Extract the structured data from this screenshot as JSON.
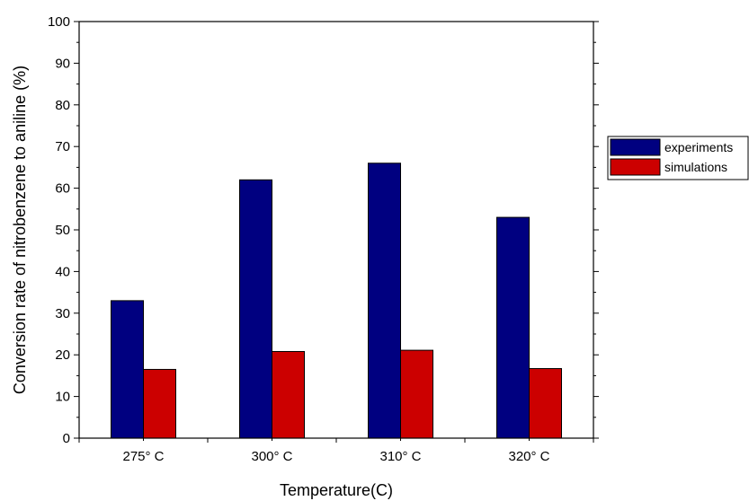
{
  "chart_data": {
    "type": "bar",
    "title": "",
    "xlabel": "Temperature(C)",
    "ylabel": "Conversion rate of nitrobenzene to aniline (%)",
    "ylim": [
      0,
      100
    ],
    "yticks": [
      0,
      10,
      20,
      30,
      40,
      50,
      60,
      70,
      80,
      90,
      100
    ],
    "categories": [
      "275° C",
      "300° C",
      "310° C",
      "320° C"
    ],
    "series": [
      {
        "name": "experiments",
        "color": "#000080",
        "values": [
          33,
          62,
          66,
          53
        ]
      },
      {
        "name": "simulations",
        "color": "#cc0000",
        "values": [
          16.5,
          20.8,
          21.1,
          16.7
        ]
      }
    ],
    "grid": false,
    "legend_position": "right"
  }
}
